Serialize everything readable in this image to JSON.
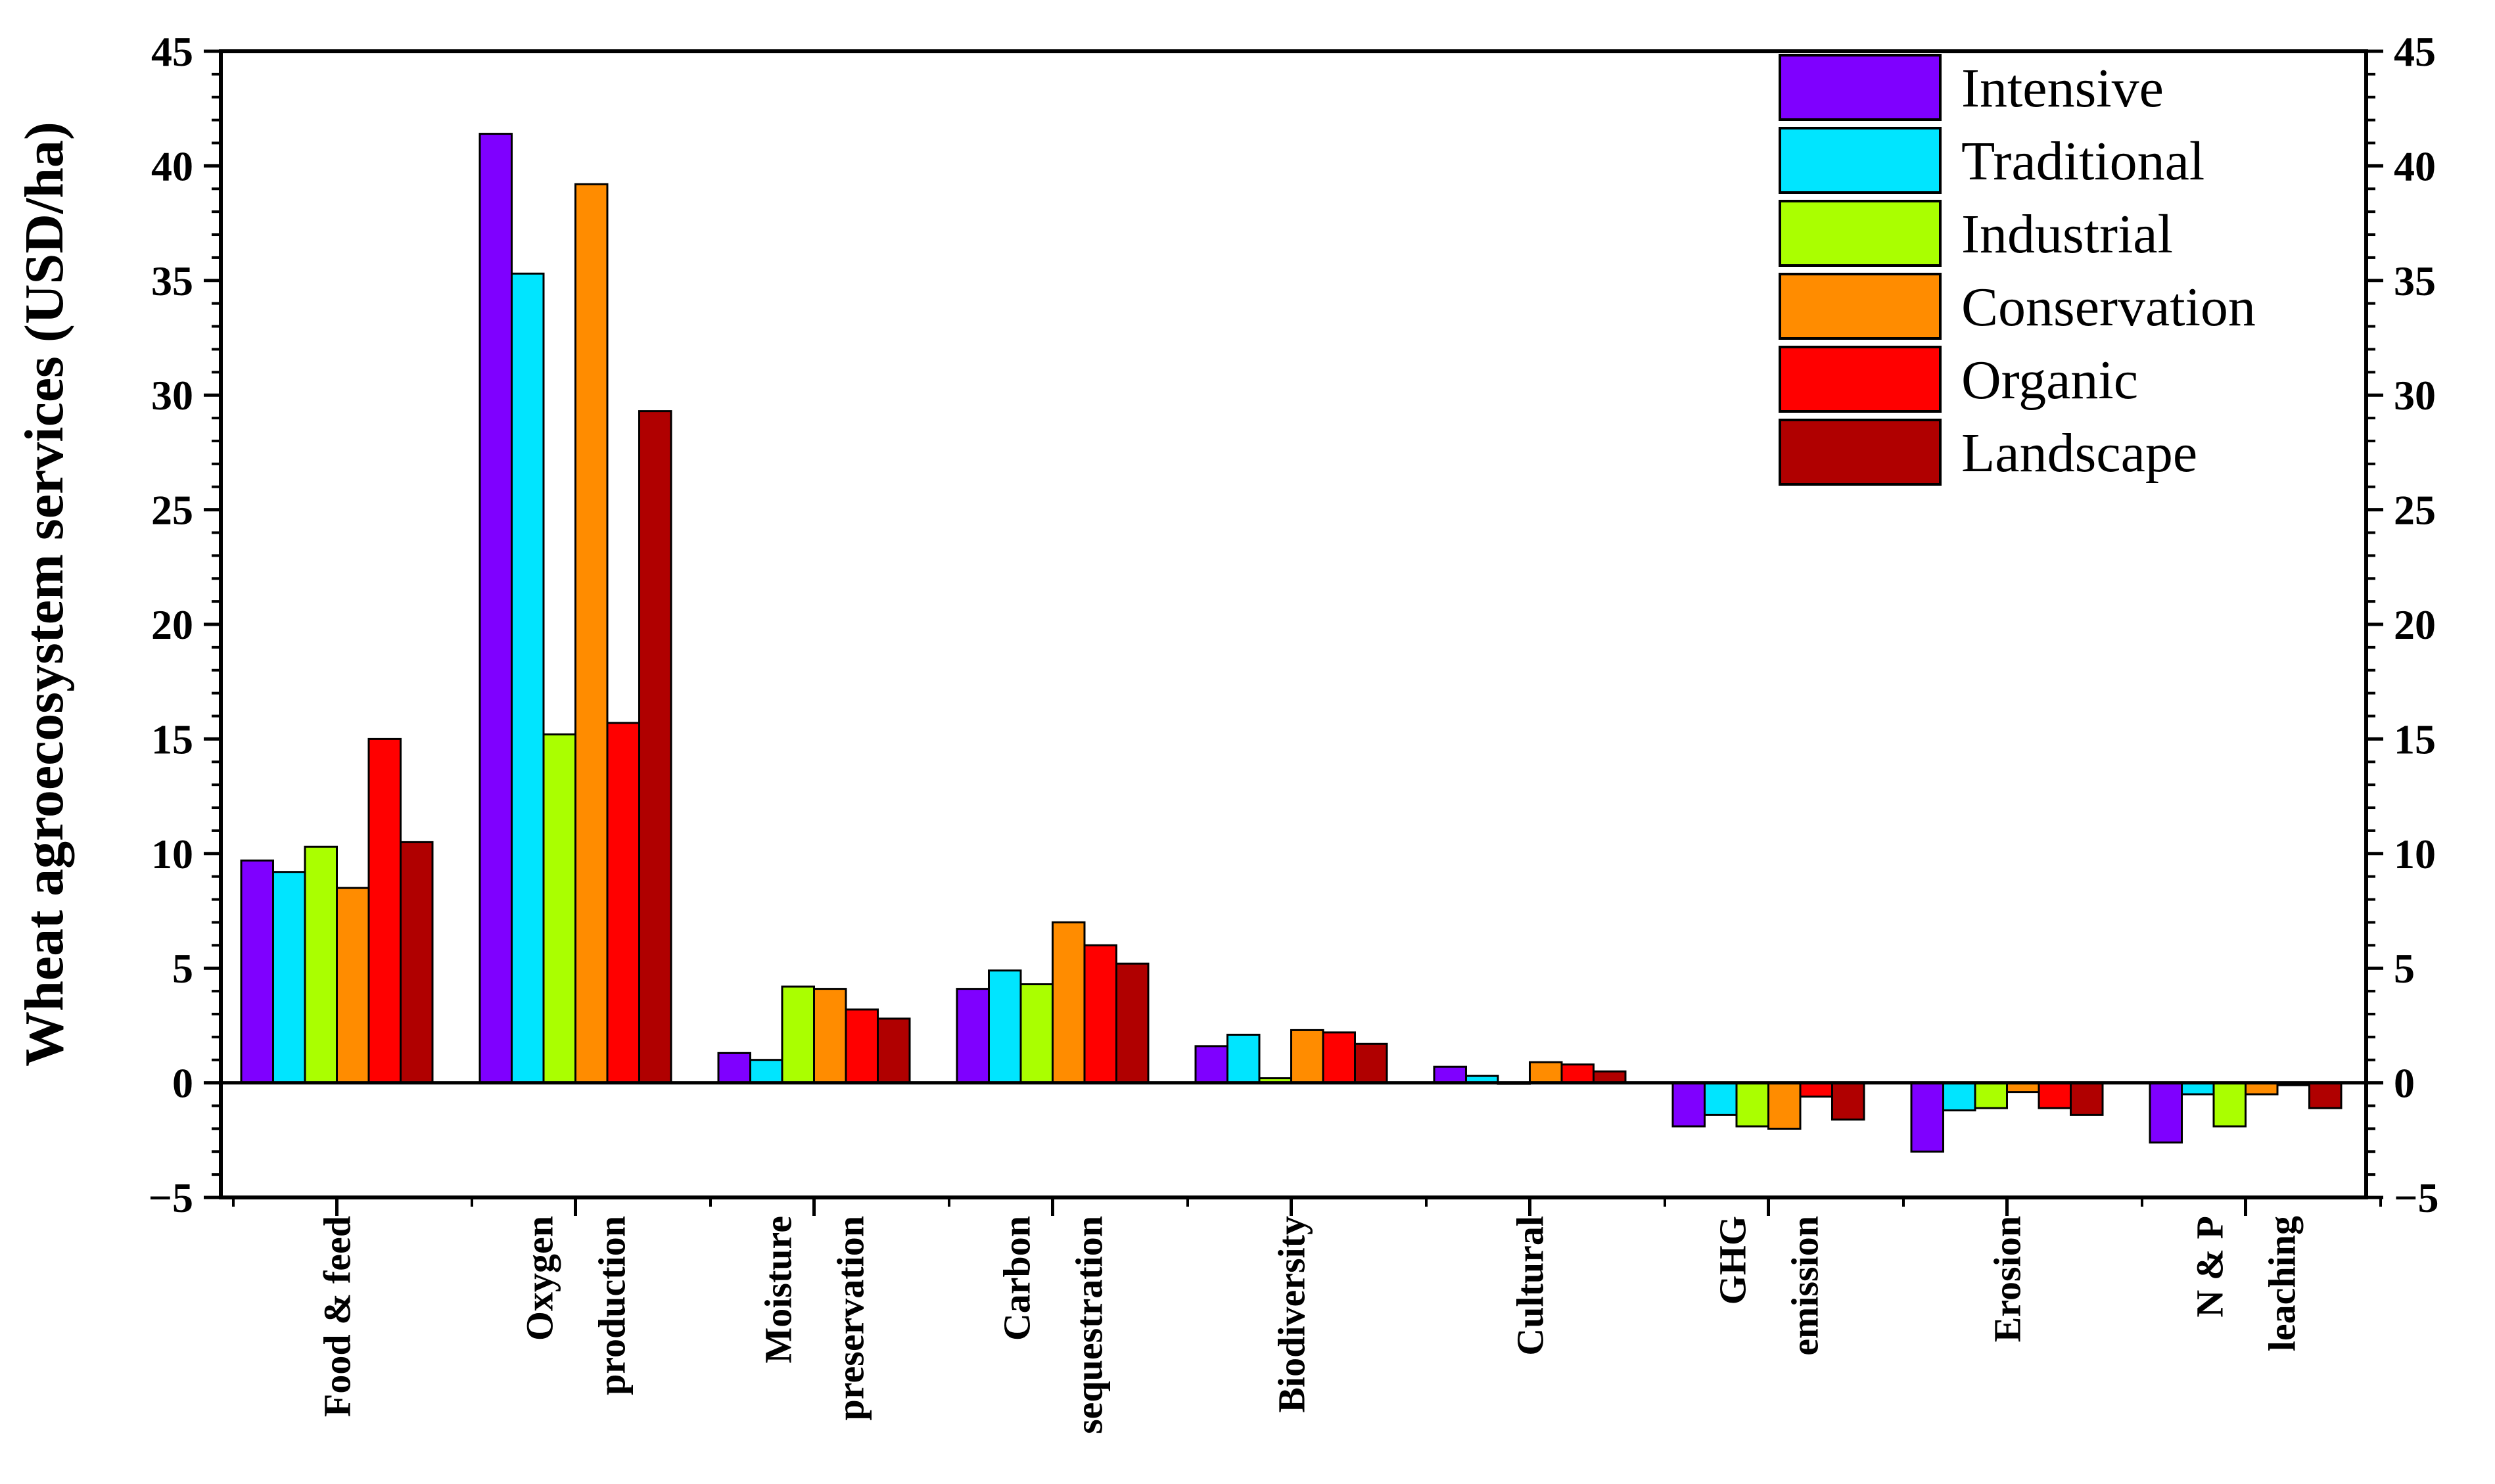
{
  "chart_data": {
    "type": "bar",
    "title": "",
    "xlabel": "",
    "ylabel": "Wheat agroecosystem services (USD/ha)",
    "ylim": [
      -5,
      45
    ],
    "yticks": [
      "−5",
      "0",
      "5",
      "10",
      "15",
      "20",
      "25",
      "30",
      "35",
      "40",
      "45"
    ],
    "ytick_values": [
      -5,
      0,
      5,
      10,
      15,
      20,
      25,
      30,
      35,
      40,
      45
    ],
    "grid": false,
    "legend_position": "top-right",
    "categories": [
      [
        "Food & feed"
      ],
      [
        "Oxygen",
        "production"
      ],
      [
        "Moisture",
        "preservation"
      ],
      [
        "Carbon",
        "sequestration"
      ],
      [
        "Biodiversity"
      ],
      [
        "Cultural"
      ],
      [
        "GHG",
        "emission"
      ],
      [
        "Erosion"
      ],
      [
        "N & P",
        "leaching"
      ]
    ],
    "series": [
      {
        "name": "Intensive",
        "color": "#7f00ff",
        "values": [
          9.7,
          41.4,
          1.3,
          4.1,
          1.6,
          0.7,
          -1.9,
          -3.0,
          -2.6
        ]
      },
      {
        "name": "Traditional",
        "color": "#00e5ff",
        "values": [
          9.2,
          35.3,
          1.0,
          4.9,
          2.1,
          0.3,
          -1.4,
          -1.2,
          -0.5
        ]
      },
      {
        "name": "Industrial",
        "color": "#aaff00",
        "values": [
          10.3,
          15.2,
          4.2,
          4.3,
          0.2,
          0.0,
          -1.9,
          -1.1,
          -1.9
        ]
      },
      {
        "name": "Conservation",
        "color": "#ff8c00",
        "values": [
          8.5,
          39.2,
          4.1,
          7.0,
          2.3,
          0.9,
          -2.0,
          -0.4,
          -0.5
        ]
      },
      {
        "name": "Organic",
        "color": "#ff0000",
        "values": [
          15.0,
          15.7,
          3.2,
          6.0,
          2.2,
          0.8,
          -0.6,
          -1.1,
          -0.1
        ]
      },
      {
        "name": "Landscape",
        "color": "#b00000",
        "values": [
          10.5,
          29.3,
          2.8,
          5.2,
          1.7,
          0.5,
          -1.6,
          -1.4,
          -1.1
        ]
      }
    ]
  }
}
